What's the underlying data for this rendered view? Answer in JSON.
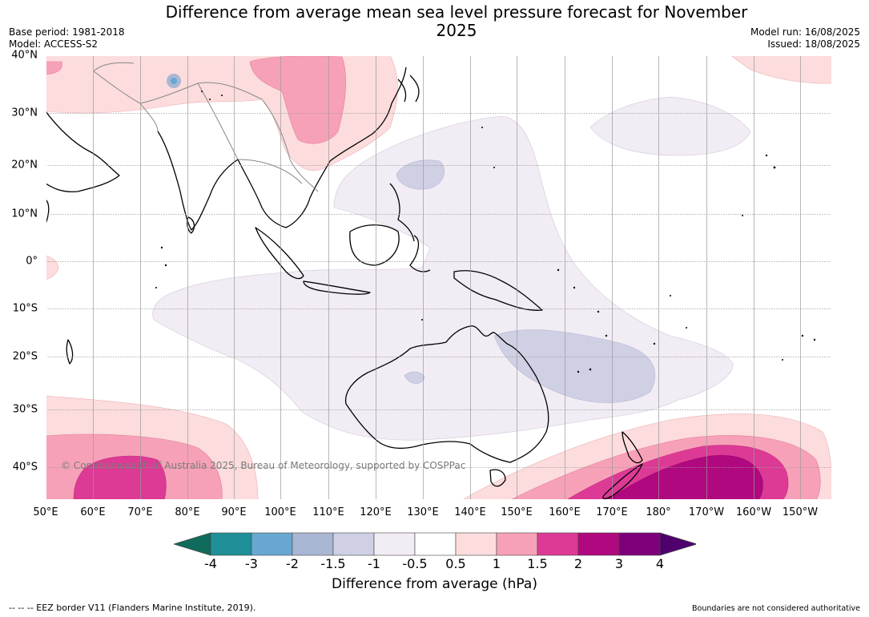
{
  "title": "Difference from average mean sea level pressure forecast for November 2025",
  "meta_left": {
    "base_period": "Base period: 1981-2018",
    "model": "Model: ACCESS-S2"
  },
  "meta_right": {
    "model_run": "Model run: 16/08/2025",
    "issued": "Issued: 18/08/2025"
  },
  "lat_ticks": [
    "40°N",
    "30°N",
    "20°N",
    "10°N",
    "0°",
    "10°S",
    "20°S",
    "30°S",
    "40°S"
  ],
  "lon_ticks": [
    "50°E",
    "60°E",
    "70°E",
    "80°E",
    "90°E",
    "100°E",
    "110°E",
    "120°E",
    "130°E",
    "140°E",
    "150°E",
    "160°E",
    "170°E",
    "180°",
    "170°W",
    "160°W",
    "150°W"
  ],
  "copyright": "© Commonwealth of Australia 2025, Bureau of Meteorology, supported by COSPPac",
  "colorbar": {
    "ticks": [
      "-4",
      "-3",
      "-2",
      "-1.5",
      "-1",
      "-0.5",
      "0.5",
      "1",
      "1.5",
      "2",
      "3",
      "4"
    ],
    "colors": [
      "#0f6b5a",
      "#1f8f97",
      "#68a8d0",
      "#a9b7d4",
      "#cfd0e4",
      "#f2ecf4",
      "#ffffff",
      "#fcdcdc",
      "#f7a1b8",
      "#dc3a95",
      "#b0087e",
      "#7d007a",
      "#4f006d"
    ],
    "label": "Difference from average (hPa)"
  },
  "footer_left": "--  --  -- EEZ border V11 (Flanders Marine Institute, 2019).",
  "footer_right": "Boundaries are not considered authoritative"
}
